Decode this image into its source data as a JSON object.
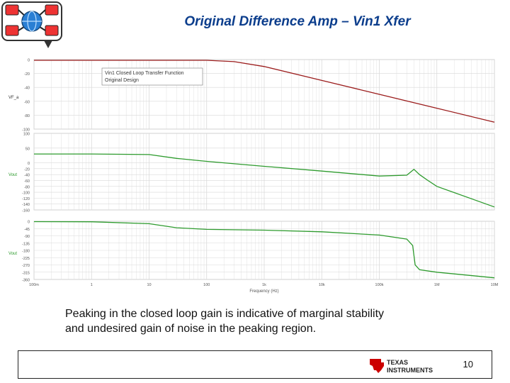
{
  "slide": {
    "title": "Original Difference Amp – Vin1 Xfer",
    "caption_line1": "Peaking in the closed loop gain is indicative of marginal stability",
    "caption_line2": "and undesired gain of noise in the peaking region.",
    "page_number": "10",
    "brand_line1": "TEXAS",
    "brand_line2": "INSTRUMENTS"
  },
  "colors": {
    "title": "#0b3d8c",
    "series_top": "#9b1c1c",
    "series_green": "#2e9b2e",
    "grid": "#d9d9d9",
    "ti_red": "#cc0000"
  },
  "chart_data": [
    {
      "type": "line",
      "x_scale": "log",
      "xlim": [
        0.1,
        10000000
      ],
      "ylabel": "VF_a",
      "ylim": [
        -100,
        0
      ],
      "yticks": [
        0,
        -20,
        -40,
        -60,
        -80,
        -100
      ],
      "legend": [
        "Vin1 Closed Loop Transfer Function",
        "Original Design"
      ],
      "legend_position": "top-left",
      "series": [
        {
          "x": [
            0.1,
            1,
            10,
            100,
            300,
            1000,
            10000,
            100000,
            1000000,
            10000000
          ],
          "y": [
            -1,
            -1,
            -1,
            -1,
            -3,
            -10,
            -30,
            -50,
            -70,
            -90
          ]
        }
      ]
    },
    {
      "type": "line",
      "x_scale": "log",
      "xlim": [
        0.1,
        10000000
      ],
      "ylabel": "Vout",
      "ylim": [
        -160,
        100
      ],
      "yticks": [
        100,
        50,
        0,
        -20,
        -40,
        -60,
        -80,
        -100,
        -120,
        -140,
        -160
      ],
      "series": [
        {
          "x": [
            0.1,
            1,
            10,
            30,
            100,
            1000,
            10000,
            100000,
            300000,
            400000,
            500000,
            700000,
            1000000,
            10000000
          ],
          "y": [
            30,
            30,
            28,
            15,
            5,
            -12,
            -28,
            -45,
            -42,
            -22,
            -40,
            -60,
            -80,
            -150
          ]
        }
      ]
    },
    {
      "type": "line",
      "x_scale": "log",
      "xlim": [
        0.1,
        10000000
      ],
      "ylabel": "Vout",
      "xlabel": "Frequency (Hz)",
      "ylim": [
        -360,
        0
      ],
      "yticks": [
        0,
        -45,
        -90,
        -135,
        -180,
        -225,
        -270,
        -315,
        -360
      ],
      "xticks": [
        "100m",
        "1",
        "10",
        "100",
        "1k",
        "10k",
        "100k",
        "1M",
        "10M"
      ],
      "series": [
        {
          "x": [
            0.1,
            1,
            10,
            30,
            100,
            1000,
            10000,
            100000,
            300000,
            380000,
            420000,
            500000,
            1000000,
            10000000
          ],
          "y": [
            -2,
            -3,
            -15,
            -40,
            -50,
            -55,
            -65,
            -85,
            -110,
            -150,
            -270,
            -300,
            -315,
            -350
          ]
        }
      ]
    }
  ]
}
